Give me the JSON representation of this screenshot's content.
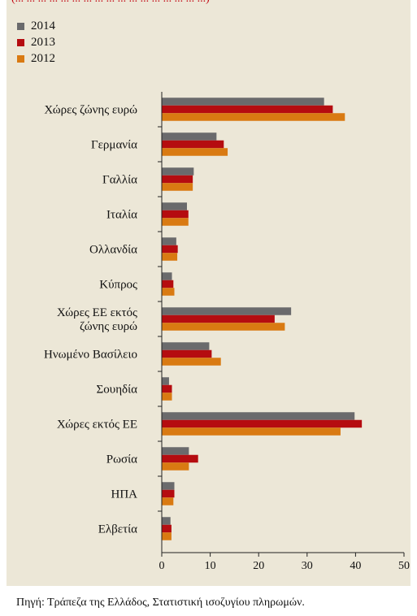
{
  "top_note": "(... ... ... ... ... ... ... ... ... ... ... ... ... ... ... ... ...)",
  "colors": {
    "background": "#ece7d7",
    "series_2014": "#6a6a6c",
    "series_2013": "#b50c10",
    "series_2012": "#d97a12"
  },
  "source_note": "Πηγή: Τράπεζα της Ελλάδος, Στατιστική ισοζυγίου πληρωμών.",
  "chart_data": {
    "type": "bar",
    "orientation": "horizontal",
    "title": "",
    "xlabel": "",
    "ylabel": "",
    "xlim": [
      0,
      50
    ],
    "xticks": [
      0,
      10,
      20,
      30,
      40,
      50
    ],
    "grid": false,
    "legend_position": "top-left",
    "categories": [
      [
        "Χώρες ζώνης ευρώ"
      ],
      [
        "Γερμανία"
      ],
      [
        "Γαλλία"
      ],
      [
        "Ιταλία"
      ],
      [
        "Ολλανδία"
      ],
      [
        "Κύπρος"
      ],
      [
        "Χώρες ΕΕ εκτός",
        "ζώνης ευρώ"
      ],
      [
        "Ηνωμένο Βασίλειο"
      ],
      [
        "Σουηδία"
      ],
      [
        "Χώρες εκτός ΕΕ"
      ],
      [
        "Ρωσία"
      ],
      [
        "ΗΠΑ"
      ],
      [
        "Ελβετία"
      ]
    ],
    "series": [
      {
        "name": "2014",
        "color": "#6a6a6c",
        "values": [
          33.5,
          11.3,
          6.6,
          5.2,
          3.0,
          2.1,
          26.7,
          9.8,
          1.5,
          39.8,
          5.6,
          2.6,
          1.8
        ]
      },
      {
        "name": "2013",
        "color": "#b50c10",
        "values": [
          35.3,
          12.8,
          6.4,
          5.5,
          3.3,
          2.4,
          23.3,
          10.3,
          2.1,
          41.3,
          7.5,
          2.6,
          2.0
        ]
      },
      {
        "name": "2012",
        "color": "#d97a12",
        "values": [
          37.8,
          13.6,
          6.4,
          5.5,
          3.2,
          2.6,
          25.4,
          12.2,
          2.1,
          36.9,
          5.6,
          2.4,
          2.0
        ]
      }
    ]
  }
}
